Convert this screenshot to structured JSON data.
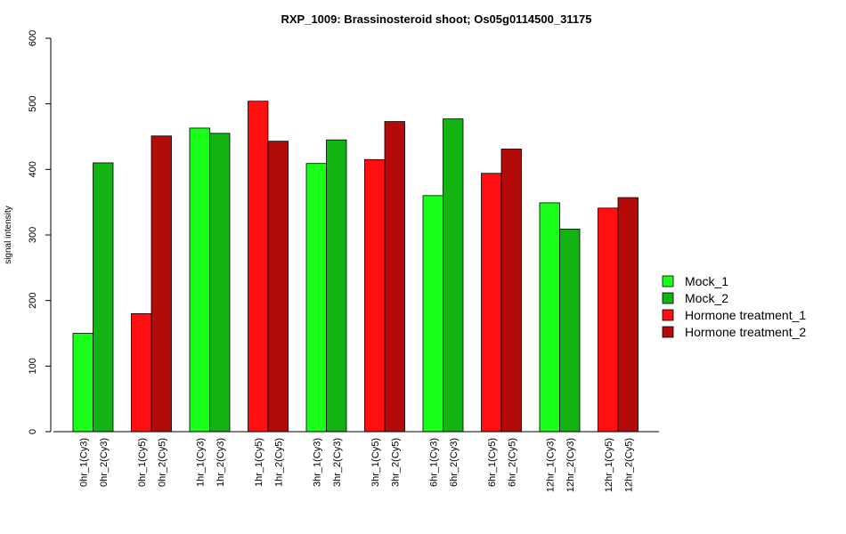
{
  "chart_data": {
    "type": "bar",
    "title": "RXP_1009: Brassinosteroid shoot; Os05g0114500_31175",
    "xlabel": "",
    "ylabel": "signal intensity",
    "ylim": [
      0,
      600
    ],
    "yticks": [
      0,
      100,
      200,
      300,
      400,
      500,
      600
    ],
    "grid": false,
    "legend_position": "right",
    "legend": [
      {
        "name": "Mock_1",
        "color": "#19ff19"
      },
      {
        "name": "Mock_2",
        "color": "#12b312"
      },
      {
        "name": "Hormone treatment_1",
        "color": "#ff0f0f"
      },
      {
        "name": "Hormone treatment_2",
        "color": "#b30a0a"
      }
    ],
    "bars": [
      {
        "label": "0hr_1(Cy3)",
        "value": 150,
        "series": "Mock_1"
      },
      {
        "label": "0hr_2(Cy3)",
        "value": 410,
        "series": "Mock_2"
      },
      {
        "label": "0hr_1(Cy5)",
        "value": 180,
        "series": "Hormone treatment_1"
      },
      {
        "label": "0hr_2(Cy5)",
        "value": 451,
        "series": "Hormone treatment_2"
      },
      {
        "label": "1hr_1(Cy3)",
        "value": 463,
        "series": "Mock_1"
      },
      {
        "label": "1hr_2(Cy3)",
        "value": 455,
        "series": "Mock_2"
      },
      {
        "label": "1hr_1(Cy5)",
        "value": 504,
        "series": "Hormone treatment_1"
      },
      {
        "label": "1hr_2(Cy5)",
        "value": 443,
        "series": "Hormone treatment_2"
      },
      {
        "label": "3hr_1(Cy3)",
        "value": 409,
        "series": "Mock_1"
      },
      {
        "label": "3hr_2(Cy3)",
        "value": 445,
        "series": "Mock_2"
      },
      {
        "label": "3hr_1(Cy5)",
        "value": 415,
        "series": "Hormone treatment_1"
      },
      {
        "label": "3hr_2(Cy5)",
        "value": 473,
        "series": "Hormone treatment_2"
      },
      {
        "label": "6hr_1(Cy3)",
        "value": 360,
        "series": "Mock_1"
      },
      {
        "label": "6hr_2(Cy3)",
        "value": 477,
        "series": "Mock_2"
      },
      {
        "label": "6hr_1(Cy5)",
        "value": 394,
        "series": "Hormone treatment_1"
      },
      {
        "label": "6hr_2(Cy5)",
        "value": 431,
        "series": "Hormone treatment_2"
      },
      {
        "label": "12hr_1(Cy3)",
        "value": 349,
        "series": "Mock_1"
      },
      {
        "label": "12hr_2(Cy3)",
        "value": 309,
        "series": "Mock_2"
      },
      {
        "label": "12hr_1(Cy5)",
        "value": 341,
        "series": "Hormone treatment_1"
      },
      {
        "label": "12hr_2(Cy5)",
        "value": 357,
        "series": "Hormone treatment_2"
      }
    ]
  }
}
